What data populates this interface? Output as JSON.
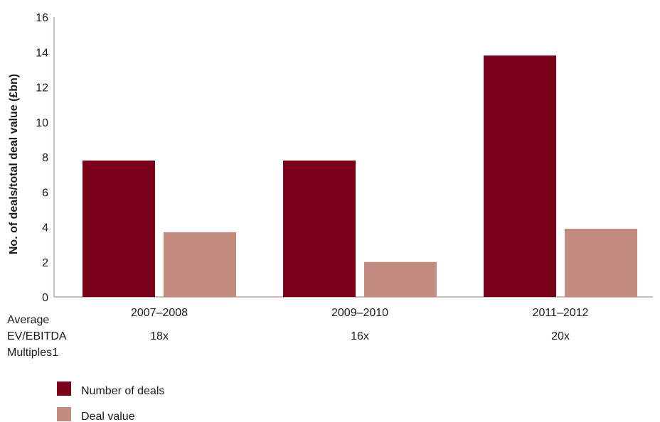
{
  "chart_data": {
    "type": "bar",
    "title": "",
    "ylabel": "No. of deals/total deal value (£bn)",
    "xlabel": "",
    "ylim": [
      0,
      16
    ],
    "yticks": [
      0,
      2,
      4,
      6,
      8,
      10,
      12,
      14,
      16
    ],
    "categories": [
      "2007–2008",
      "2009–2010",
      "2011–2012"
    ],
    "series": [
      {
        "name": "Number of deals",
        "color": "#7b0019",
        "values": [
          7.8,
          7.8,
          13.8
        ]
      },
      {
        "name": "Deal value",
        "color": "#c48b80",
        "values": [
          3.7,
          2.0,
          3.9
        ]
      }
    ],
    "multiples_label": [
      "Average",
      "EV/EBITDA",
      "Multiples1"
    ],
    "multiples": [
      "18x",
      "16x",
      "20x"
    ],
    "legend_position": "bottom-left",
    "grid": false
  }
}
